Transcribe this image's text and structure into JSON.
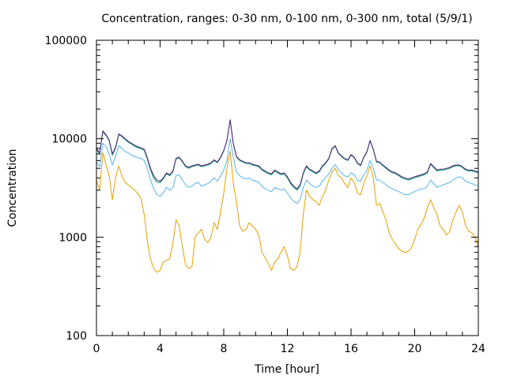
{
  "chart_data": {
    "type": "line",
    "title": "Concentration, ranges: 0-30 nm, 0-100 nm, 0-300 nm, total (5/9/1)",
    "xlabel": "Time [hour]",
    "ylabel": "Concentration",
    "xlim": [
      0,
      24
    ],
    "ylim": [
      100,
      100000
    ],
    "yscale": "log",
    "xticks": [
      0,
      4,
      8,
      12,
      16,
      20,
      24
    ],
    "xtick_labels": [
      "0",
      "4",
      "8",
      "12",
      "16",
      "20",
      "24"
    ],
    "yticks": [
      100,
      1000,
      10000,
      100000
    ],
    "ytick_labels": [
      "100",
      "1000",
      "10000",
      "100000"
    ],
    "grid": false,
    "legend": "none",
    "series": [
      {
        "color": "#e69f00",
        "x": [
          0,
          0.2,
          0.4,
          0.6,
          0.8,
          1.0,
          1.2,
          1.4,
          1.6,
          1.8,
          2.0,
          2.2,
          2.5,
          2.8,
          3.0,
          3.2,
          3.4,
          3.6,
          3.8,
          4.0,
          4.2,
          4.4,
          4.6,
          4.8,
          5.0,
          5.2,
          5.4,
          5.6,
          5.8,
          6.0,
          6.2,
          6.4,
          6.6,
          6.8,
          7.0,
          7.2,
          7.4,
          7.6,
          7.8,
          8.0,
          8.2,
          8.4,
          8.6,
          8.8,
          9.0,
          9.2,
          9.4,
          9.6,
          9.8,
          10.0,
          10.2,
          10.4,
          10.6,
          10.8,
          11.0,
          11.2,
          11.4,
          11.6,
          11.8,
          12.0,
          12.2,
          12.4,
          12.6,
          12.8,
          13.0,
          13.2,
          13.4,
          13.6,
          13.8,
          14.0,
          14.2,
          14.4,
          14.6,
          14.8,
          15.0,
          15.2,
          15.4,
          15.6,
          15.8,
          16.0,
          16.2,
          16.4,
          16.6,
          16.8,
          17.0,
          17.2,
          17.4,
          17.6,
          17.8,
          18.0,
          18.2,
          18.4,
          18.6,
          18.8,
          19.0,
          19.2,
          19.4,
          19.6,
          19.8,
          20.0,
          20.2,
          20.4,
          20.6,
          20.8,
          21.0,
          21.2,
          21.4,
          21.6,
          21.8,
          22.0,
          22.2,
          22.4,
          22.6,
          22.8,
          23.0,
          23.2,
          23.4,
          23.6,
          23.8,
          24.0
        ],
        "y": [
          3800,
          3000,
          7200,
          5500,
          4200,
          2400,
          4000,
          5300,
          4200,
          3600,
          3400,
          3200,
          2900,
          2500,
          1700,
          900,
          600,
          480,
          440,
          460,
          560,
          580,
          600,
          850,
          1500,
          1300,
          800,
          520,
          480,
          500,
          1000,
          1100,
          1200,
          950,
          880,
          1000,
          1400,
          1200,
          1800,
          2800,
          5000,
          7500,
          3500,
          2300,
          1300,
          1150,
          1200,
          1400,
          1300,
          1200,
          1050,
          700,
          620,
          540,
          460,
          560,
          600,
          700,
          800,
          650,
          480,
          460,
          500,
          700,
          1700,
          3000,
          2600,
          2400,
          2300,
          2100,
          2600,
          3000,
          3800,
          4600,
          5000,
          4200,
          4000,
          3500,
          3200,
          4000,
          3600,
          2800,
          2700,
          3500,
          4200,
          5300,
          4000,
          2100,
          2200,
          1800,
          1500,
          1100,
          950,
          850,
          760,
          720,
          700,
          720,
          780,
          950,
          1200,
          1350,
          1550,
          2000,
          2400,
          2000,
          1700,
          1300,
          1200,
          1050,
          1150,
          1500,
          1800,
          2100,
          1800,
          1300,
          1150,
          1100,
          1000,
          780
        ]
      },
      {
        "color": "#56b4e9",
        "x": [
          0,
          0.2,
          0.4,
          0.6,
          0.8,
          1.0,
          1.2,
          1.4,
          1.6,
          1.8,
          2.0,
          2.2,
          2.5,
          2.8,
          3.0,
          3.2,
          3.4,
          3.6,
          3.8,
          4.0,
          4.2,
          4.4,
          4.6,
          4.8,
          5.0,
          5.2,
          5.4,
          5.6,
          5.8,
          6.0,
          6.2,
          6.4,
          6.6,
          6.8,
          7.0,
          7.2,
          7.4,
          7.6,
          7.8,
          8.0,
          8.2,
          8.4,
          8.6,
          8.8,
          9.0,
          9.2,
          9.4,
          9.6,
          9.8,
          10.0,
          10.2,
          10.4,
          10.6,
          10.8,
          11.0,
          11.2,
          11.4,
          11.6,
          11.8,
          12.0,
          12.2,
          12.4,
          12.6,
          12.8,
          13.0,
          13.2,
          13.4,
          13.6,
          13.8,
          14.0,
          14.2,
          14.4,
          14.6,
          14.8,
          15.0,
          15.2,
          15.4,
          15.6,
          15.8,
          16.0,
          16.2,
          16.4,
          16.6,
          16.8,
          17.0,
          17.2,
          17.4,
          17.6,
          17.8,
          18.0,
          18.2,
          18.4,
          18.6,
          18.8,
          19.0,
          19.2,
          19.4,
          19.6,
          19.8,
          20.0,
          20.2,
          20.4,
          20.6,
          20.8,
          21.0,
          21.2,
          21.4,
          21.6,
          21.8,
          22.0,
          22.2,
          22.4,
          22.6,
          22.8,
          23.0,
          23.2,
          23.4,
          23.6,
          23.8,
          24.0
        ],
        "y": [
          5800,
          5200,
          9000,
          8300,
          7000,
          5400,
          6600,
          8500,
          8000,
          7400,
          7200,
          6800,
          6500,
          6300,
          6000,
          5000,
          3800,
          3100,
          2700,
          2600,
          2800,
          3200,
          3000,
          3200,
          4200,
          4300,
          3800,
          3400,
          3200,
          3300,
          3500,
          3600,
          3300,
          3400,
          3500,
          3700,
          4000,
          3700,
          4200,
          4800,
          6000,
          10000,
          6500,
          4600,
          4200,
          4000,
          3900,
          4000,
          3800,
          3700,
          3600,
          3300,
          3100,
          3000,
          2900,
          3200,
          3100,
          3000,
          3100,
          2800,
          2500,
          2300,
          2200,
          2400,
          3200,
          3800,
          3500,
          3300,
          3200,
          3300,
          3700,
          4000,
          4400,
          5000,
          5500,
          4800,
          4500,
          4200,
          4100,
          4500,
          4300,
          3800,
          3700,
          4300,
          4800,
          6000,
          5000,
          3800,
          3800,
          3600,
          3400,
          3200,
          3100,
          3000,
          2900,
          2800,
          2700,
          2700,
          2800,
          2900,
          3000,
          3100,
          3100,
          3300,
          3800,
          3500,
          3200,
          3300,
          3400,
          3500,
          3600,
          3800,
          4000,
          4100,
          4000,
          3700,
          3600,
          3500,
          3400,
          3300
        ]
      },
      {
        "color": "#009e73",
        "x": [
          0,
          0.2,
          0.4,
          0.6,
          0.8,
          1.0,
          1.2,
          1.4,
          1.6,
          1.8,
          2.0,
          2.2,
          2.5,
          2.8,
          3.0,
          3.2,
          3.4,
          3.6,
          3.8,
          4.0,
          4.2,
          4.4,
          4.6,
          4.8,
          5.0,
          5.2,
          5.4,
          5.6,
          5.8,
          6.0,
          6.2,
          6.4,
          6.6,
          6.8,
          7.0,
          7.2,
          7.4,
          7.6,
          7.8,
          8.0,
          8.2,
          8.4,
          8.6,
          8.8,
          9.0,
          9.2,
          9.4,
          9.6,
          9.8,
          10.0,
          10.2,
          10.4,
          10.6,
          10.8,
          11.0,
          11.2,
          11.4,
          11.6,
          11.8,
          12.0,
          12.2,
          12.4,
          12.6,
          12.8,
          13.0,
          13.2,
          13.4,
          13.6,
          13.8,
          14.0,
          14.2,
          14.4,
          14.6,
          14.8,
          15.0,
          15.2,
          15.4,
          15.6,
          15.8,
          16.0,
          16.2,
          16.4,
          16.6,
          16.8,
          17.0,
          17.2,
          17.4,
          17.6,
          17.8,
          18.0,
          18.2,
          18.4,
          18.6,
          18.8,
          19.0,
          19.2,
          19.4,
          19.6,
          19.8,
          20.0,
          20.2,
          20.4,
          20.6,
          20.8,
          21.0,
          21.2,
          21.4,
          21.6,
          21.8,
          22.0,
          22.2,
          22.4,
          22.6,
          22.8,
          23.0,
          23.2,
          23.4,
          23.6,
          23.8,
          24.0
        ],
        "y": [
          7800,
          7000,
          11800,
          10800,
          9500,
          6800,
          8000,
          11000,
          10500,
          9800,
          9200,
          8800,
          8200,
          7900,
          7600,
          6200,
          4800,
          4000,
          3600,
          3600,
          3900,
          4400,
          4200,
          4600,
          6200,
          6400,
          5800,
          5200,
          5000,
          5200,
          5300,
          5400,
          5200,
          5300,
          5400,
          5600,
          6000,
          5700,
          6400,
          7500,
          9500,
          15500,
          8800,
          6500,
          6000,
          5800,
          5600,
          5600,
          5400,
          5300,
          5200,
          4800,
          4600,
          4400,
          4300,
          4700,
          4500,
          4300,
          4400,
          4000,
          3500,
          3200,
          3000,
          3300,
          4400,
          5200,
          4800,
          4600,
          4400,
          4600,
          5200,
          5600,
          6200,
          7800,
          8400,
          7100,
          6600,
          6200,
          6000,
          6800,
          6400,
          5600,
          5300,
          6400,
          7300,
          9500,
          7700,
          5800,
          5700,
          5300,
          5000,
          4700,
          4500,
          4400,
          4200,
          4000,
          3900,
          3800,
          3900,
          4000,
          4100,
          4200,
          4300,
          4500,
          5500,
          5100,
          4700,
          4800,
          4800,
          4900,
          5000,
          5200,
          5300,
          5300,
          5100,
          4800,
          4700,
          4700,
          4600,
          4500
        ]
      },
      {
        "color": "#56207a",
        "x": [
          0,
          0.2,
          0.4,
          0.6,
          0.8,
          1.0,
          1.2,
          1.4,
          1.6,
          1.8,
          2.0,
          2.2,
          2.5,
          2.8,
          3.0,
          3.2,
          3.4,
          3.6,
          3.8,
          4.0,
          4.2,
          4.4,
          4.6,
          4.8,
          5.0,
          5.2,
          5.4,
          5.6,
          5.8,
          6.0,
          6.2,
          6.4,
          6.6,
          6.8,
          7.0,
          7.2,
          7.4,
          7.6,
          7.8,
          8.0,
          8.2,
          8.4,
          8.6,
          8.8,
          9.0,
          9.2,
          9.4,
          9.6,
          9.8,
          10.0,
          10.2,
          10.4,
          10.6,
          10.8,
          11.0,
          11.2,
          11.4,
          11.6,
          11.8,
          12.0,
          12.2,
          12.4,
          12.6,
          12.8,
          13.0,
          13.2,
          13.4,
          13.6,
          13.8,
          14.0,
          14.2,
          14.4,
          14.6,
          14.8,
          15.0,
          15.2,
          15.4,
          15.6,
          15.8,
          16.0,
          16.2,
          16.4,
          16.6,
          16.8,
          17.0,
          17.2,
          17.4,
          17.6,
          17.8,
          18.0,
          18.2,
          18.4,
          18.6,
          18.8,
          19.0,
          19.2,
          19.4,
          19.6,
          19.8,
          20.0,
          20.2,
          20.4,
          20.6,
          20.8,
          21.0,
          21.2,
          21.4,
          21.6,
          21.8,
          22.0,
          22.2,
          22.4,
          22.6,
          22.8,
          23.0,
          23.2,
          23.4,
          23.6,
          23.8,
          24.0
        ],
        "y": [
          8000,
          7200,
          12000,
          11000,
          9700,
          7000,
          8200,
          11200,
          10700,
          10000,
          9400,
          9000,
          8400,
          8100,
          7800,
          6400,
          5000,
          4200,
          3800,
          3700,
          4000,
          4500,
          4300,
          4700,
          6300,
          6500,
          5900,
          5300,
          5100,
          5300,
          5400,
          5500,
          5300,
          5400,
          5500,
          5700,
          6100,
          5800,
          6500,
          7600,
          9600,
          15600,
          8900,
          6600,
          6100,
          5900,
          5700,
          5700,
          5500,
          5400,
          5300,
          4900,
          4700,
          4500,
          4400,
          4800,
          4600,
          4400,
          4500,
          4100,
          3600,
          3300,
          3100,
          3400,
          4500,
          5300,
          4900,
          4700,
          4500,
          4700,
          5300,
          5700,
          6300,
          7900,
          8500,
          7200,
          6700,
          6300,
          6100,
          6900,
          6500,
          5700,
          5400,
          6500,
          7400,
          9600,
          7800,
          5900,
          5800,
          5400,
          5100,
          4800,
          4600,
          4500,
          4300,
          4100,
          4000,
          3900,
          4000,
          4100,
          4200,
          4300,
          4400,
          4600,
          5600,
          5200,
          4800,
          4900,
          4900,
          5000,
          5100,
          5300,
          5400,
          5400,
          5200,
          4900,
          4800,
          4800,
          4700,
          4600
        ]
      }
    ]
  }
}
